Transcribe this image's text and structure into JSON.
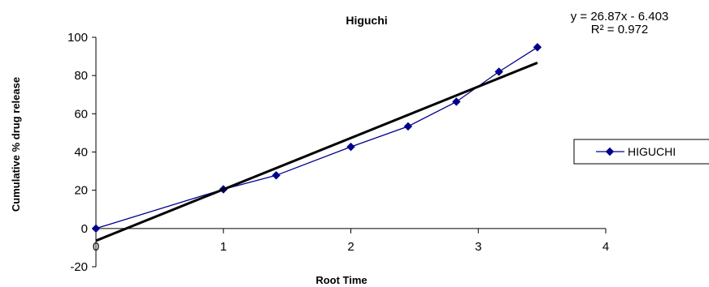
{
  "chart_data": {
    "type": "scatter",
    "title": "Higuchi",
    "xlabel": "Root Time",
    "ylabel": "Cumulative % drug release",
    "xlim": [
      0,
      4
    ],
    "ylim": [
      -20,
      100
    ],
    "x_ticks": [
      "0",
      "1",
      "2",
      "3",
      "4"
    ],
    "y_ticks": [
      "-20",
      "0",
      "20",
      "40",
      "60",
      "80",
      "100"
    ],
    "grid": false,
    "legend_position": "right",
    "series": [
      {
        "name": "HIGUCHI",
        "color": "#00008B",
        "marker": "diamond",
        "x": [
          0,
          1,
          1.414,
          2,
          2.449,
          2.828,
          3.162,
          3.464
        ],
        "y": [
          0,
          20.5,
          27.8,
          42.7,
          53.4,
          66.3,
          82.0,
          94.8
        ]
      }
    ],
    "trendline": {
      "type": "linear",
      "slope": 26.87,
      "intercept": -6.403,
      "x_range": [
        0,
        3.464
      ],
      "color": "#000000",
      "equation": "y = 26.87x - 6.403",
      "r_squared": "R² = 0.972"
    }
  }
}
